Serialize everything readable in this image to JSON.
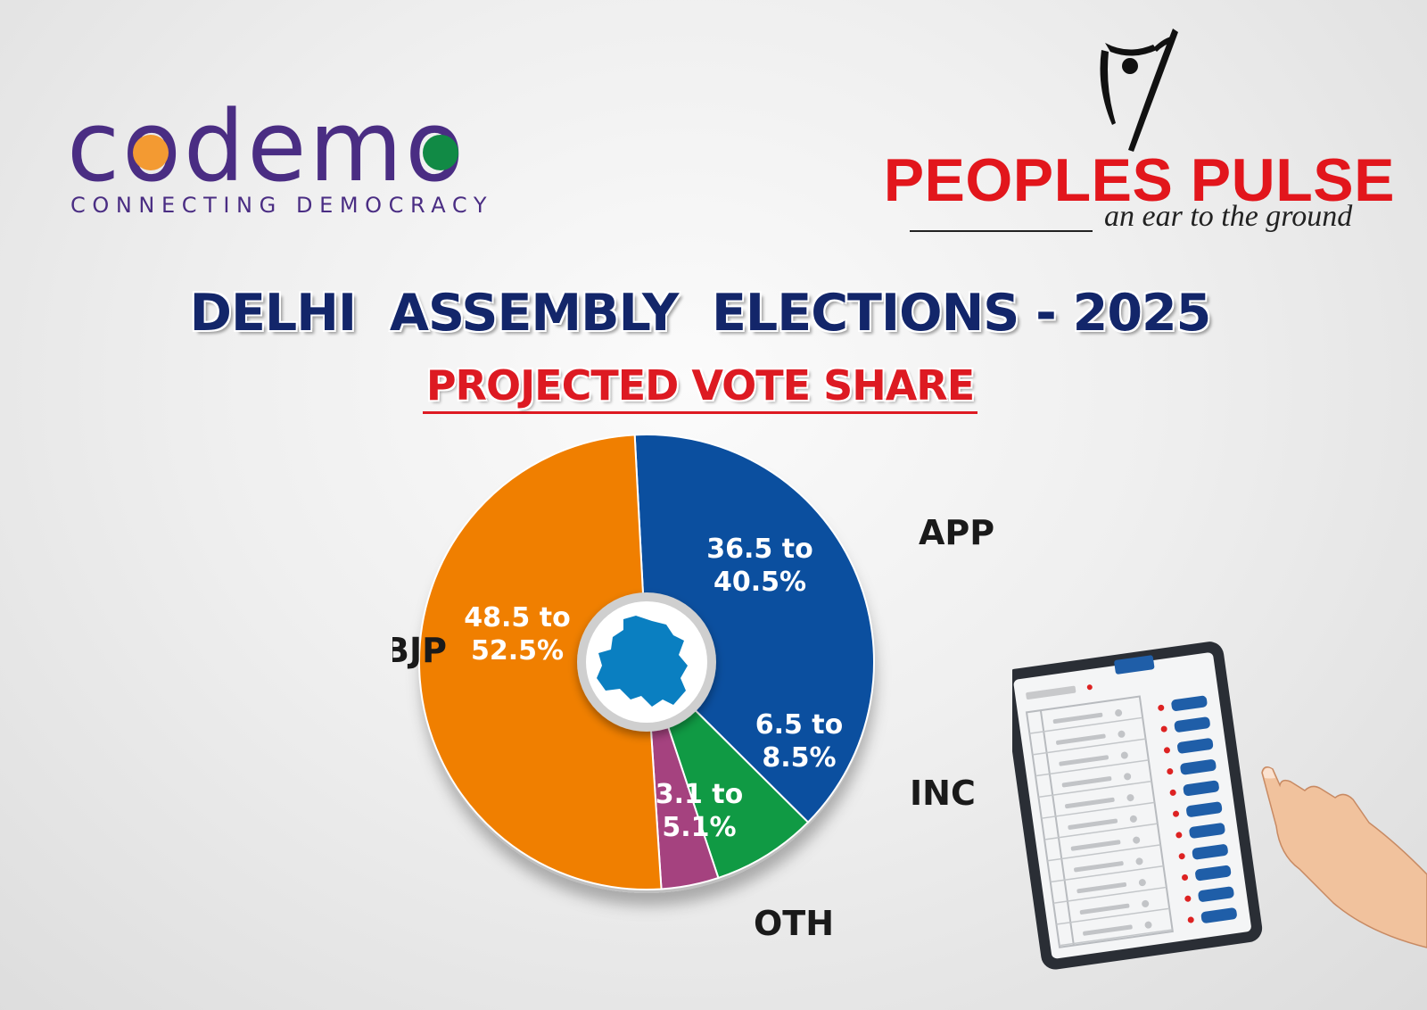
{
  "logos": {
    "codemo": {
      "wordmark": "codemo",
      "tagline": "CONNECTING DEMOCRACY"
    },
    "peoples_pulse": {
      "name": "PEOPLES PULSE",
      "tagline": "an ear to the ground"
    }
  },
  "colors": {
    "bjp": "#f07f00",
    "aap": "#0b4f9f",
    "inc": "#109a44",
    "oth": "#a5427f",
    "title": "#13266a",
    "subtitle": "#dd1a22"
  },
  "chart_data": {
    "type": "pie",
    "title": "DELHI  ASSEMBLY  ELECTIONS - 2025",
    "subtitle": "PROJECTED VOTE SHARE",
    "center_icon": "delhi-map-icon",
    "slices": [
      {
        "label": "APP",
        "range": [
          36.5,
          40.5
        ],
        "value": 38.5,
        "data_label": [
          "36.5 to",
          "40.5%"
        ],
        "color": "#0b4f9f"
      },
      {
        "label": "INC",
        "range": [
          6.5,
          8.5
        ],
        "value": 7.5,
        "data_label": [
          "6.5 to",
          "8.5%"
        ],
        "color": "#109a44"
      },
      {
        "label": "OTH",
        "range": [
          3.1,
          5.1
        ],
        "value": 4.1,
        "data_label": [
          "3.1 to",
          "5.1%"
        ],
        "color": "#a5427f"
      },
      {
        "label": "BJP",
        "range": [
          48.5,
          52.5
        ],
        "value": 50.5,
        "data_label": [
          "48.5 to",
          "52.5%"
        ],
        "color": "#f07f00"
      }
    ]
  },
  "illustration": {
    "icon": "evm-voting-machine-icon"
  }
}
